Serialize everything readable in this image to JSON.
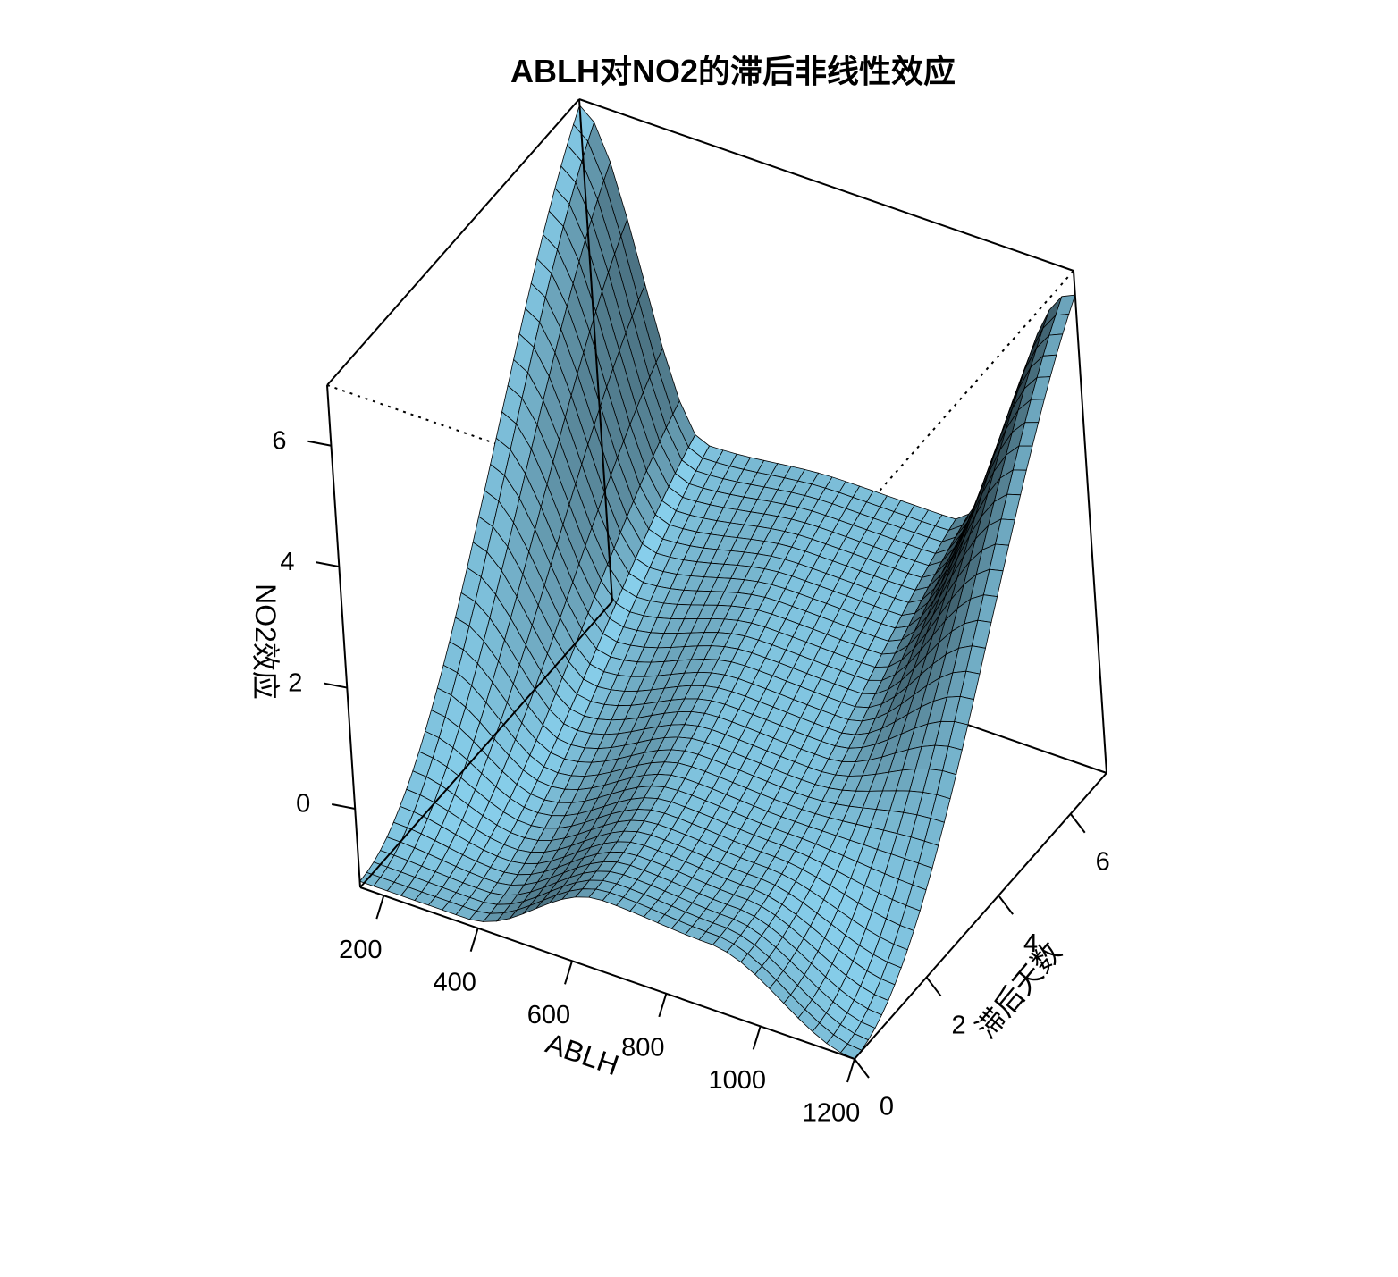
{
  "chart_data": {
    "type": "surface3d",
    "title": "ABLH对NO2的滞后非线性效应",
    "xlabel": "ABLH",
    "ylabel": "滞后天数",
    "zlabel": "NO2效应",
    "xlim": [
      150,
      1200
    ],
    "ylim": [
      0,
      7
    ],
    "zlim": [
      -1.3,
      7.0
    ],
    "x_ticks": [
      200,
      400,
      600,
      800,
      1000,
      1200
    ],
    "y_ticks": [
      0,
      2,
      4,
      6
    ],
    "z_ticks": [
      0,
      2,
      4,
      6
    ],
    "grid_size": [
      36,
      36
    ],
    "surface_color": "#87CEEB",
    "grid_line_color": "#000000",
    "box": true,
    "corner_values": {
      "low_x_low_lag": -1.2,
      "low_x_high_lag": 6.9,
      "high_x_low_lag": -1.3,
      "high_x_high_lag": 6.6
    },
    "profile": {
      "x": [
        150,
        375,
        675,
        900,
        1200
      ],
      "lag0": [
        -1.2,
        -1.2,
        -0.1,
        -0.2,
        -1.3
      ],
      "lag7": [
        6.9,
        1.9,
        2.1,
        2.1,
        6.6
      ]
    }
  }
}
